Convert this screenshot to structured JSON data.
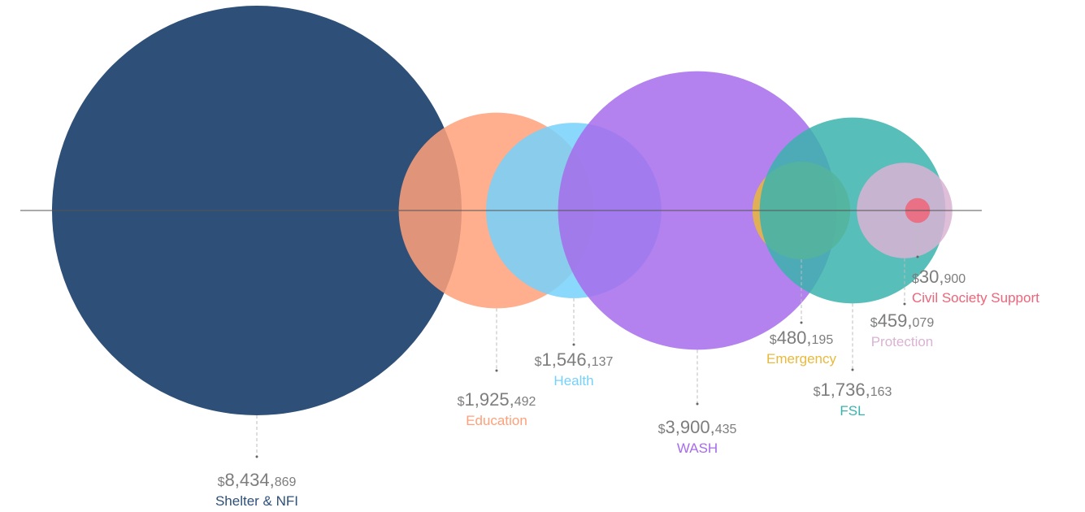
{
  "chart_data": {
    "type": "bubble",
    "title": "",
    "currency_symbol": "$",
    "series": [
      {
        "name": "Shelter & NFI",
        "value": 8434869,
        "amount_text": "8,434,869",
        "color": "#2e5078"
      },
      {
        "name": "Education",
        "value": 1925492,
        "amount_text": "1,925,492",
        "color": "#ffa07a"
      },
      {
        "name": "Health",
        "value": 1546137,
        "amount_text": "1,546,137",
        "color": "#75d1fb"
      },
      {
        "name": "WASH",
        "value": 3900435,
        "amount_text": "3,900,435",
        "color": "#a66ceb"
      },
      {
        "name": "Emergency",
        "value": 480195,
        "amount_text": "480,195",
        "color": "#e9b93b"
      },
      {
        "name": "FSL",
        "value": 1736163,
        "amount_text": "1,736,163",
        "color": "#3ab3ad"
      },
      {
        "name": "Protection",
        "value": 459079,
        "amount_text": "459,079",
        "color": "#d9b3d3"
      },
      {
        "name": "Civil Society Support",
        "value": 30900,
        "amount_text": "30,900",
        "color": "#ee6478"
      }
    ]
  }
}
